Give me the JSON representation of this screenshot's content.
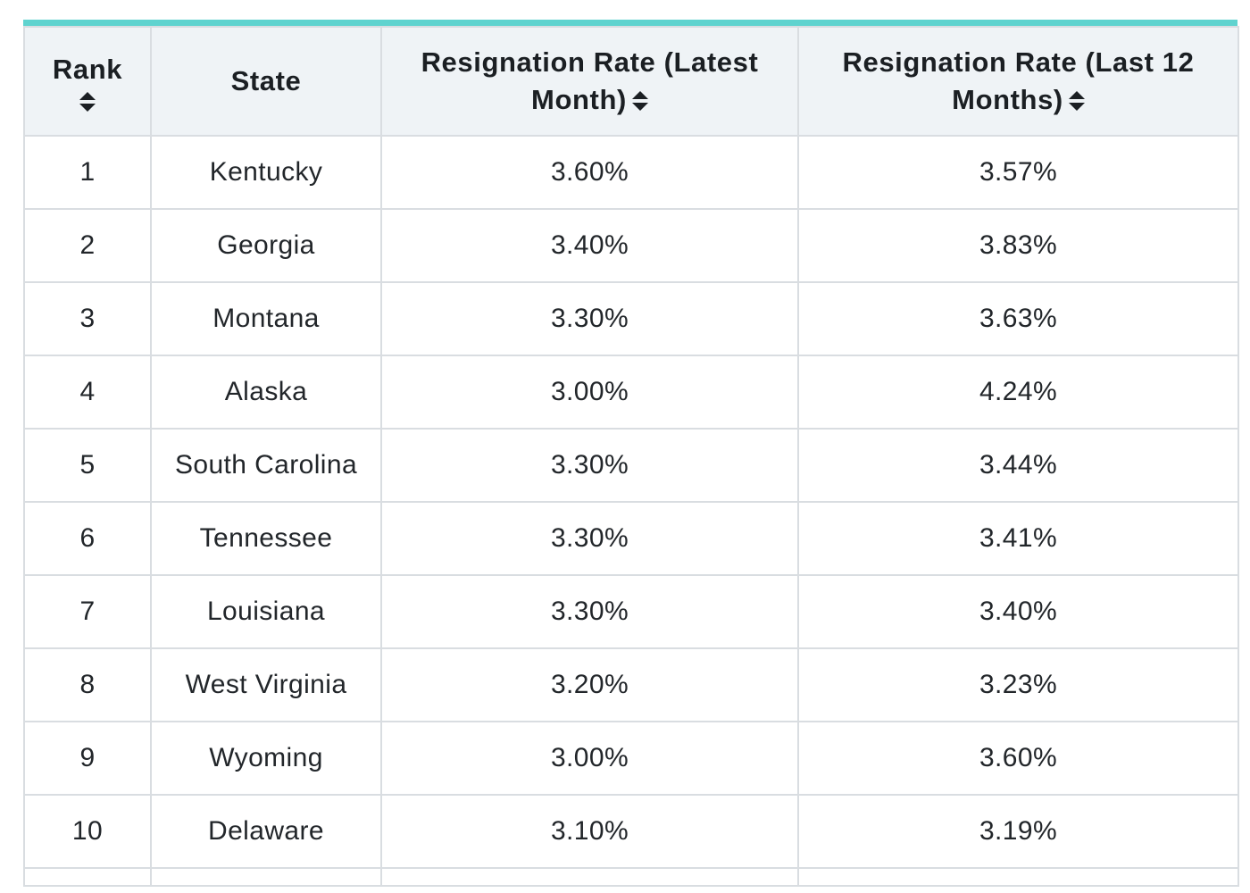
{
  "colors": {
    "accent_top_border": "#5fd3cf",
    "header_background": "#eff3f6",
    "grid_line": "#d9dde1"
  },
  "table": {
    "headers": {
      "rank": "Rank",
      "state": "State",
      "latest_month": "Resignation Rate (Latest Month)",
      "last_12_months": "Resignation Rate (Last 12 Months)"
    },
    "sort_icon": "sort-up-down-icon",
    "rows": [
      {
        "rank": "1",
        "state": "Kentucky",
        "latest_month": "3.60%",
        "last_12_months": "3.57%"
      },
      {
        "rank": "2",
        "state": "Georgia",
        "latest_month": "3.40%",
        "last_12_months": "3.83%"
      },
      {
        "rank": "3",
        "state": "Montana",
        "latest_month": "3.30%",
        "last_12_months": "3.63%"
      },
      {
        "rank": "4",
        "state": "Alaska",
        "latest_month": "3.00%",
        "last_12_months": "4.24%"
      },
      {
        "rank": "5",
        "state": "South Carolina",
        "latest_month": "3.30%",
        "last_12_months": "3.44%"
      },
      {
        "rank": "6",
        "state": "Tennessee",
        "latest_month": "3.30%",
        "last_12_months": "3.41%"
      },
      {
        "rank": "7",
        "state": "Louisiana",
        "latest_month": "3.30%",
        "last_12_months": "3.40%"
      },
      {
        "rank": "8",
        "state": "West Virginia",
        "latest_month": "3.20%",
        "last_12_months": "3.23%"
      },
      {
        "rank": "9",
        "state": "Wyoming",
        "latest_month": "3.00%",
        "last_12_months": "3.60%"
      },
      {
        "rank": "10",
        "state": "Delaware",
        "latest_month": "3.10%",
        "last_12_months": "3.19%"
      }
    ]
  }
}
